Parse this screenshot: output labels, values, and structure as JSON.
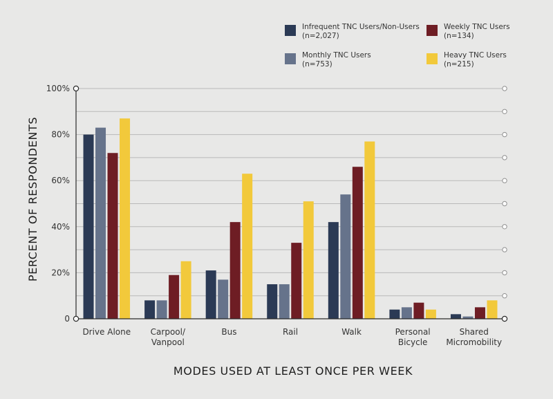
{
  "chart_data": {
    "type": "bar",
    "title": "",
    "xlabel": "MODES USED AT LEAST ONCE PER WEEK",
    "ylabel": "PERCENT OF RESPONDENTS",
    "ylim": [
      0,
      100
    ],
    "yticks": [
      "0",
      "20%",
      "40%",
      "60%",
      "80%",
      "100%"
    ],
    "grid": true,
    "legend_position": "top-right",
    "categories": [
      [
        "Drive Alone"
      ],
      [
        "Carpool/",
        "Vanpool"
      ],
      [
        "Bus"
      ],
      [
        "Rail"
      ],
      [
        "Walk"
      ],
      [
        "Personal",
        "Bicycle"
      ],
      [
        "Shared",
        "Micromobility"
      ]
    ],
    "series": [
      {
        "name": "Infrequent TNC Users/Non-Users",
        "n": "(n=2,027)",
        "color": "#2b3a55",
        "values": [
          80,
          8,
          21,
          15,
          42,
          4,
          2
        ]
      },
      {
        "name": "Monthly TNC Users",
        "n": "(n=753)",
        "color": "#66738b",
        "values": [
          83,
          8,
          17,
          15,
          54,
          5,
          1
        ]
      },
      {
        "name": "Weekly TNC Users",
        "n": "(n=134)",
        "color": "#6e1d24",
        "values": [
          72,
          19,
          42,
          33,
          66,
          7,
          5
        ]
      },
      {
        "name": "Heavy TNC Users",
        "n": "(n=215)",
        "color": "#f2c93b",
        "values": [
          87,
          25,
          63,
          51,
          77,
          4,
          8
        ]
      }
    ]
  }
}
